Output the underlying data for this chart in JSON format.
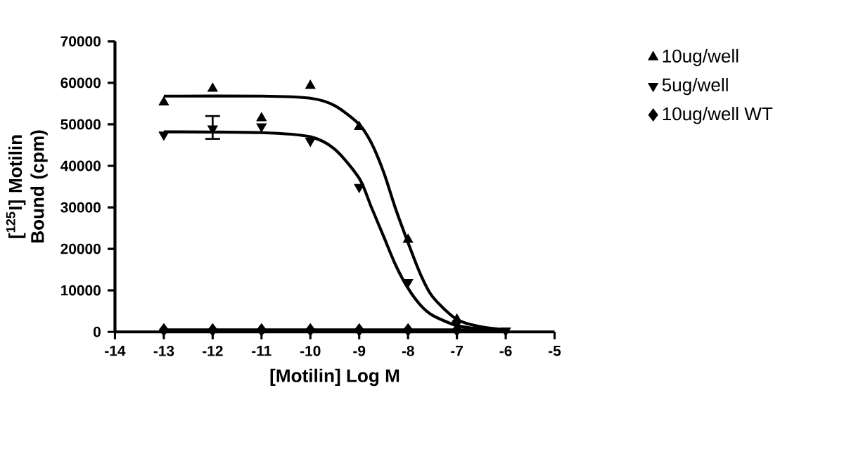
{
  "chart_data": {
    "type": "scatter",
    "xlabel": "[Motilin] Log M",
    "ylabel": "[$^{125}$I] Motilin Bound (cpm)",
    "xlim": [
      -14,
      -5
    ],
    "ylim": [
      0,
      70000
    ],
    "xticks": [
      -14,
      -13,
      -12,
      -11,
      -10,
      -9,
      -8,
      -7,
      -6,
      -5
    ],
    "yticks": [
      0,
      10000,
      20000,
      30000,
      40000,
      50000,
      60000,
      70000
    ],
    "grid": false,
    "legend": "right",
    "series": [
      {
        "name": "10ug/well",
        "marker": "triangle",
        "color": "#000000",
        "x": [
          -13,
          -12,
          -11,
          -10,
          -9,
          -8,
          -7
        ],
        "values": [
          55300,
          58600,
          51500,
          59300,
          49400,
          22200,
          3000
        ]
      },
      {
        "name": "5ug/well",
        "marker": "triangle down",
        "color": "#000000",
        "x": [
          -13,
          -12,
          -11,
          -10,
          -9,
          -8,
          -7,
          -6
        ],
        "values": [
          47500,
          49000,
          49500,
          46000,
          34900,
          12000,
          2000,
          300
        ],
        "errors": [
          null,
          [
            46500,
            52000
          ],
          null,
          null,
          null,
          null,
          null,
          null
        ]
      },
      {
        "name": "10ug/well WT",
        "marker": "diamond",
        "color": "#000000",
        "x": [
          -13,
          -12,
          -11,
          -10,
          -9,
          -8,
          -7
        ],
        "values": [
          500,
          500,
          500,
          500,
          500,
          500,
          500
        ]
      },
      {
        "type": "line",
        "marker": "none",
        "color": "#000000",
        "x": [
          -13,
          -11,
          -10,
          -9.5,
          -9,
          -8.75,
          -8.5,
          -8.25,
          -8,
          -7.75,
          -7.5,
          -7,
          -6.5,
          -6
        ],
        "values": [
          56800,
          56800,
          56300,
          54500,
          50000,
          45500,
          38500,
          29500,
          21500,
          14000,
          8500,
          3000,
          1200,
          500
        ]
      },
      {
        "type": "line",
        "marker": "none",
        "color": "#000000",
        "x": [
          -13,
          -11,
          -10,
          -9.5,
          -9,
          -8.75,
          -8.5,
          -8.25,
          -8,
          -7.75,
          -7.5,
          -7,
          -6.5,
          -6
        ],
        "values": [
          48200,
          48000,
          47000,
          44000,
          37000,
          30000,
          23000,
          16000,
          10500,
          6500,
          4000,
          1500,
          700,
          300
        ]
      },
      {
        "type": "line",
        "marker": "none",
        "color": "#000000",
        "x": [
          -13,
          -6
        ],
        "values": [
          500,
          500
        ]
      }
    ]
  }
}
